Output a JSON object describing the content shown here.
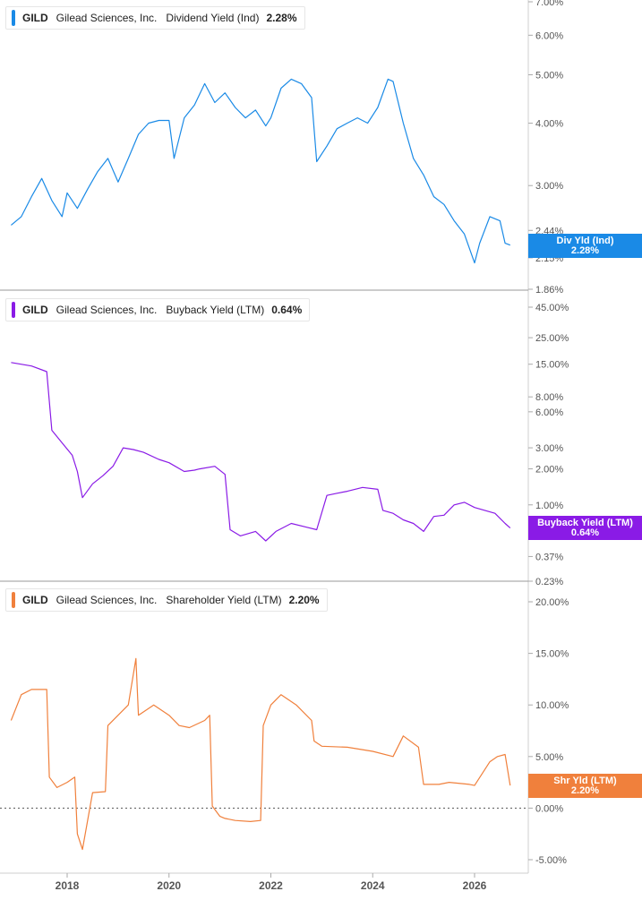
{
  "colors": {
    "dividend": "#1a8ae6",
    "buyback": "#8a1be6",
    "shareholder": "#f0803c",
    "axis": "#555555",
    "divider": "#999999"
  },
  "x_axis": {
    "labels": [
      "2018",
      "2020",
      "2022",
      "2024",
      "2026"
    ]
  },
  "panels": [
    {
      "legend": {
        "ticker": "GILD",
        "company": "Gilead Sciences, Inc.",
        "metric": "Dividend Yield (Ind)",
        "value": "2.28%"
      },
      "tag": {
        "label": "Div Yld (Ind)",
        "value": "2.28%"
      },
      "y_ticks": [
        "7.00%",
        "6.00%",
        "5.00%",
        "4.00%",
        "3.00%",
        "2.44%",
        "2.15%",
        "1.86%"
      ]
    },
    {
      "legend": {
        "ticker": "GILD",
        "company": "Gilead Sciences, Inc.",
        "metric": "Buyback Yield (LTM)",
        "value": "0.64%"
      },
      "tag": {
        "label": "Buyback Yield (LTM)",
        "value": "0.64%"
      },
      "y_ticks": [
        "45.00%",
        "25.00%",
        "15.00%",
        "8.00%",
        "6.00%",
        "3.00%",
        "2.00%",
        "1.00%",
        "0.37%",
        "0.23%"
      ]
    },
    {
      "legend": {
        "ticker": "GILD",
        "company": "Gilead Sciences, Inc.",
        "metric": "Shareholder Yield (LTM)",
        "value": "2.20%"
      },
      "tag": {
        "label": "Shr Yld (LTM)",
        "value": "2.20%"
      },
      "y_ticks": [
        "20.00%",
        "15.00%",
        "10.00%",
        "5.00%",
        "0.00%",
        "-5.00%"
      ]
    }
  ],
  "chart_data": [
    {
      "type": "line",
      "scale": "log",
      "y_unit": "%",
      "series": [
        {
          "x": [
            2016.9,
            2017.1,
            2017.3,
            2017.5,
            2017.7,
            2017.9,
            2018.0,
            2018.2,
            2018.4,
            2018.6,
            2018.8,
            2019.0,
            2019.2,
            2019.4,
            2019.6,
            2019.8,
            2020.0,
            2020.1,
            2020.3,
            2020.5,
            2020.7,
            2020.9,
            2021.1,
            2021.3,
            2021.5,
            2021.7,
            2021.9,
            2022.0,
            2022.2,
            2022.4,
            2022.6,
            2022.8,
            2022.9,
            2023.1,
            2023.3,
            2023.5,
            2023.7,
            2023.9,
            2024.1,
            2024.3,
            2024.4,
            2024.6,
            2024.8,
            2025.0,
            2025.2,
            2025.4,
            2025.6,
            2025.8,
            2026.0,
            2026.1,
            2026.3,
            2026.5,
            2026.6,
            2026.7
          ],
          "y": [
            2.5,
            2.6,
            2.85,
            3.1,
            2.8,
            2.6,
            2.9,
            2.7,
            2.95,
            3.2,
            3.4,
            3.05,
            3.4,
            3.8,
            4.0,
            4.05,
            4.05,
            3.4,
            4.1,
            4.35,
            4.8,
            4.4,
            4.6,
            4.3,
            4.1,
            4.25,
            3.95,
            4.1,
            4.7,
            4.9,
            4.8,
            4.5,
            3.35,
            3.6,
            3.9,
            4.0,
            4.1,
            4.0,
            4.3,
            4.9,
            4.85,
            4.0,
            3.4,
            3.15,
            2.85,
            2.75,
            2.55,
            2.4,
            2.1,
            2.3,
            2.6,
            2.55,
            2.3,
            2.28
          ]
        }
      ],
      "ylim": [
        1.86,
        7.0
      ]
    },
    {
      "type": "line",
      "scale": "log",
      "y_unit": "%",
      "series": [
        {
          "x": [
            2016.9,
            2017.3,
            2017.6,
            2017.7,
            2017.9,
            2018.1,
            2018.2,
            2018.3,
            2018.5,
            2018.7,
            2018.9,
            2019.1,
            2019.3,
            2019.5,
            2019.8,
            2020.0,
            2020.3,
            2020.5,
            2020.6,
            2020.9,
            2021.1,
            2021.2,
            2021.4,
            2021.7,
            2021.9,
            2022.1,
            2022.4,
            2022.7,
            2022.9,
            2023.1,
            2023.3,
            2023.5,
            2023.8,
            2024.1,
            2024.2,
            2024.4,
            2024.6,
            2024.8,
            2025.0,
            2025.2,
            2025.4,
            2025.6,
            2025.8,
            2026.0,
            2026.2,
            2026.4,
            2026.6,
            2026.7
          ],
          "y": [
            15.5,
            14.5,
            13.0,
            4.2,
            3.3,
            2.6,
            1.9,
            1.15,
            1.5,
            1.75,
            2.1,
            3.0,
            2.9,
            2.75,
            2.4,
            2.25,
            1.9,
            1.95,
            2.0,
            2.1,
            1.8,
            0.62,
            0.55,
            0.6,
            0.5,
            0.6,
            0.7,
            0.65,
            0.62,
            1.2,
            1.25,
            1.3,
            1.4,
            1.35,
            0.9,
            0.85,
            0.75,
            0.7,
            0.6,
            0.8,
            0.82,
            1.0,
            1.05,
            0.95,
            0.9,
            0.85,
            0.7,
            0.64
          ]
        }
      ],
      "ylim": [
        0.23,
        45.0
      ]
    },
    {
      "type": "line",
      "scale": "linear",
      "y_unit": "%",
      "series": [
        {
          "x": [
            2016.9,
            2017.1,
            2017.3,
            2017.6,
            2017.65,
            2017.8,
            2018.0,
            2018.15,
            2018.2,
            2018.3,
            2018.5,
            2018.75,
            2018.8,
            2019.0,
            2019.2,
            2019.35,
            2019.4,
            2019.7,
            2020.0,
            2020.2,
            2020.4,
            2020.7,
            2020.8,
            2020.85,
            2021.0,
            2021.1,
            2021.3,
            2021.6,
            2021.8,
            2021.85,
            2022.0,
            2022.2,
            2022.5,
            2022.8,
            2022.85,
            2023.0,
            2023.5,
            2024.0,
            2024.4,
            2024.6,
            2024.9,
            2025.0,
            2025.3,
            2025.5,
            2025.9,
            2026.0,
            2026.3,
            2026.45,
            2026.6,
            2026.7
          ],
          "y": [
            8.5,
            11.0,
            11.5,
            11.5,
            3.0,
            2.0,
            2.5,
            3.0,
            -2.5,
            -4.0,
            1.5,
            1.6,
            8.0,
            9.0,
            10.0,
            14.5,
            9.0,
            10.0,
            9.0,
            8.0,
            7.8,
            8.5,
            9.0,
            0.2,
            -0.8,
            -1.0,
            -1.2,
            -1.3,
            -1.2,
            8.0,
            10.0,
            11.0,
            10.0,
            8.5,
            6.5,
            6.0,
            5.9,
            5.5,
            5.0,
            7.0,
            5.9,
            2.3,
            2.3,
            2.5,
            2.3,
            2.2,
            4.5,
            5.0,
            5.2,
            2.2
          ]
        }
      ],
      "ylim": [
        -6.0,
        20.5
      ]
    }
  ]
}
